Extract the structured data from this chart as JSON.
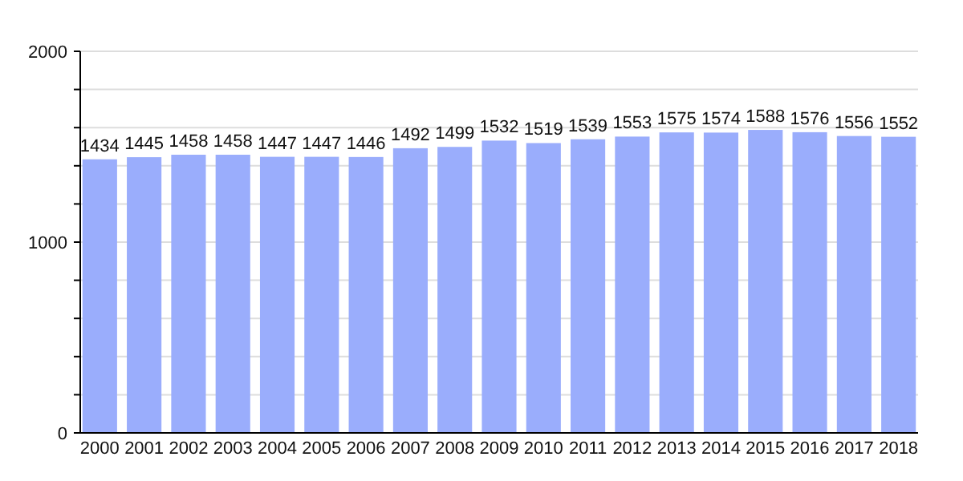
{
  "chart_data": {
    "type": "bar",
    "categories": [
      "2000",
      "2001",
      "2002",
      "2003",
      "2004",
      "2005",
      "2006",
      "2007",
      "2008",
      "2009",
      "2010",
      "2011",
      "2012",
      "2013",
      "2014",
      "2015",
      "2016",
      "2017",
      "2018"
    ],
    "values": [
      1434,
      1445,
      1458,
      1458,
      1447,
      1447,
      1446,
      1492,
      1499,
      1532,
      1519,
      1539,
      1553,
      1575,
      1574,
      1588,
      1576,
      1556,
      1552
    ],
    "color": "#9aadfc",
    "ylim": [
      0,
      2000
    ],
    "yticks": [
      0,
      {
        "value": 200,
        "label": null
      },
      {
        "value": 400,
        "label": null
      },
      {
        "value": 600,
        "label": null
      },
      {
        "value": 800,
        "label": null
      },
      1000,
      {
        "value": 1200,
        "label": null
      },
      {
        "value": 1400,
        "label": null
      },
      {
        "value": 1600,
        "label": null
      },
      {
        "value": 1800,
        "label": null
      },
      2000
    ],
    "grid": "y",
    "data_labels": true
  }
}
